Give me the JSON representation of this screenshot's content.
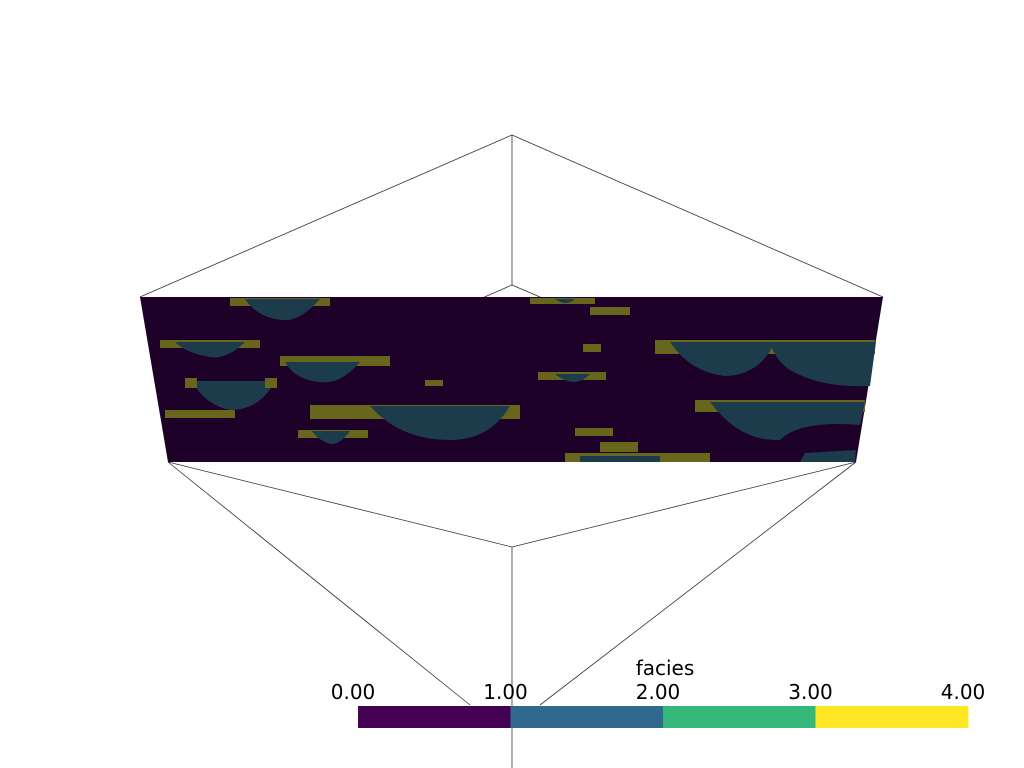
{
  "colorbar": {
    "title": "facies",
    "lim": [
      0,
      4
    ],
    "ticks": [
      {
        "value": 0,
        "label": "0.00"
      },
      {
        "value": 1,
        "label": "1.00"
      },
      {
        "value": 2,
        "label": "2.00"
      },
      {
        "value": 3,
        "label": "3.00"
      },
      {
        "value": 4,
        "label": "4.00"
      }
    ],
    "colors": [
      "#440154",
      "#31688e",
      "#35b779",
      "#fde725"
    ]
  }
}
